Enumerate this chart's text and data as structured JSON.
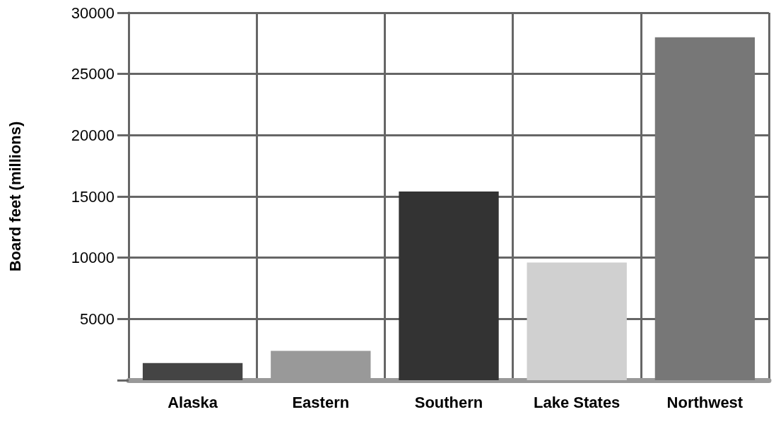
{
  "chart_data": {
    "type": "bar",
    "ylabel": "Board feet (millions)",
    "categories": [
      "Alaska",
      "Eastern",
      "Southern",
      "Lake States",
      "Northwest"
    ],
    "values": [
      1400,
      2400,
      15400,
      9600,
      28000
    ],
    "colors": [
      "#444444",
      "#999999",
      "#333333",
      "#d0d0d0",
      "#777777"
    ],
    "ylim": [
      0,
      30000
    ],
    "yticks": [
      {
        "value": 0,
        "label": null
      },
      5000,
      10000,
      15000,
      20000,
      25000,
      30000
    ],
    "grid": true
  }
}
